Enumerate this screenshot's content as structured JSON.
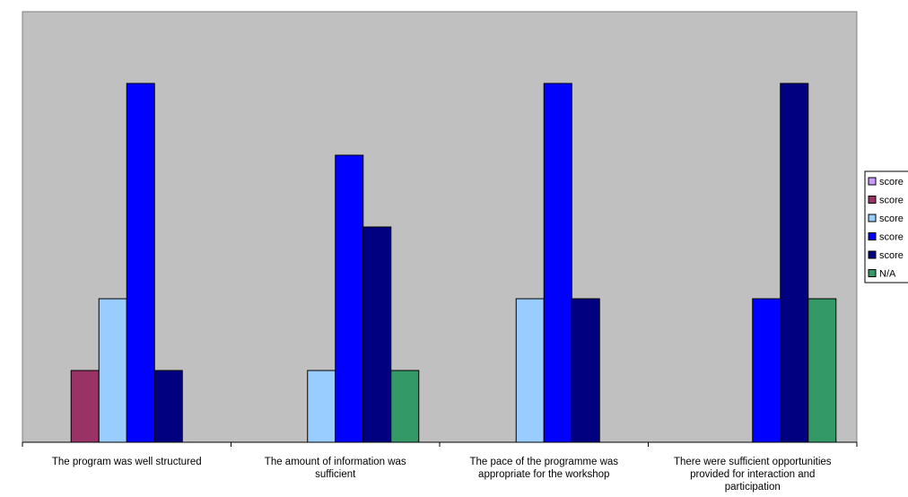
{
  "chart_data": {
    "type": "bar",
    "title": "",
    "xlabel": "",
    "ylabel": "",
    "ylim": [
      0,
      5
    ],
    "grid": false,
    "legend_position": "right",
    "categories": [
      [
        "The program was well structured"
      ],
      [
        "The amount of information was",
        "sufficient"
      ],
      [
        "The pace of the programme was",
        "appropriate for the workshop"
      ],
      [
        "There were sufficient opportunities",
        "provided for interaction and",
        "participation"
      ]
    ],
    "series": [
      {
        "name": "score",
        "color": "#cc99ff",
        "values": [
          0,
          0,
          0,
          0
        ]
      },
      {
        "name": "score",
        "color": "#993366",
        "values": [
          1,
          0,
          0,
          0
        ]
      },
      {
        "name": "score",
        "color": "#99ccff",
        "values": [
          2,
          1,
          2,
          0
        ]
      },
      {
        "name": "score",
        "color": "#0000ff",
        "values": [
          5,
          4,
          5,
          2
        ]
      },
      {
        "name": "score",
        "color": "#000080",
        "values": [
          1,
          3,
          2,
          5
        ]
      },
      {
        "name": "N/A",
        "color": "#339966",
        "values": [
          0,
          1,
          0,
          2
        ]
      }
    ],
    "plot_background": "#c0c0c0"
  }
}
